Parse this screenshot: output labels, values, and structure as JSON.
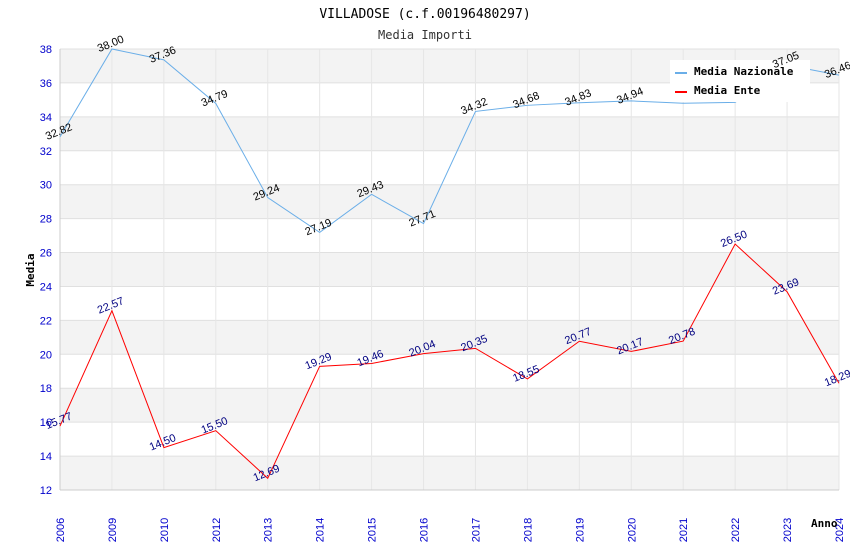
{
  "chart_data": {
    "type": "line",
    "title": "VILLADOSE (c.f.00196480297)",
    "subtitle": "Media Importi",
    "xlabel": "Anno",
    "ylabel": "Media",
    "ylim": [
      12,
      38
    ],
    "yticks": [
      12,
      14,
      16,
      18,
      20,
      22,
      24,
      26,
      28,
      30,
      32,
      34,
      36,
      38
    ],
    "categories": [
      "2006",
      "2009",
      "2010",
      "2012",
      "2013",
      "2014",
      "2015",
      "2016",
      "2017",
      "2018",
      "2019",
      "2020",
      "2021",
      "2022",
      "2023",
      "2024"
    ],
    "series": [
      {
        "name": "Media Nazionale",
        "color": "#6aaee8",
        "values": [
          32.82,
          38.0,
          37.36,
          34.79,
          29.24,
          27.19,
          29.43,
          27.71,
          34.32,
          34.68,
          34.83,
          34.94,
          34.8,
          34.85,
          37.05,
          36.46
        ],
        "labels": [
          "32.82",
          "38.00",
          "37.36",
          "34.79",
          "29.24",
          "27.19",
          "29.43",
          "27.71",
          "34.32",
          "34.68",
          "34.83",
          "34.94",
          "",
          "",
          "37.05",
          "36.46"
        ]
      },
      {
        "name": "Media Ente",
        "color": "#ff0000",
        "values": [
          15.77,
          22.57,
          14.5,
          15.5,
          12.69,
          19.29,
          19.46,
          20.04,
          20.35,
          18.55,
          20.77,
          20.17,
          20.78,
          26.5,
          23.69,
          18.29
        ],
        "labels": [
          "15.77",
          "22.57",
          "14.50",
          "15.50",
          "12.69",
          "19.29",
          "19.46",
          "20.04",
          "20.35",
          "18.55",
          "20.77",
          "20.17",
          "20.78",
          "26.50",
          "23.69",
          "18.29"
        ]
      }
    ],
    "grid": true,
    "legend_position": "top-right"
  }
}
